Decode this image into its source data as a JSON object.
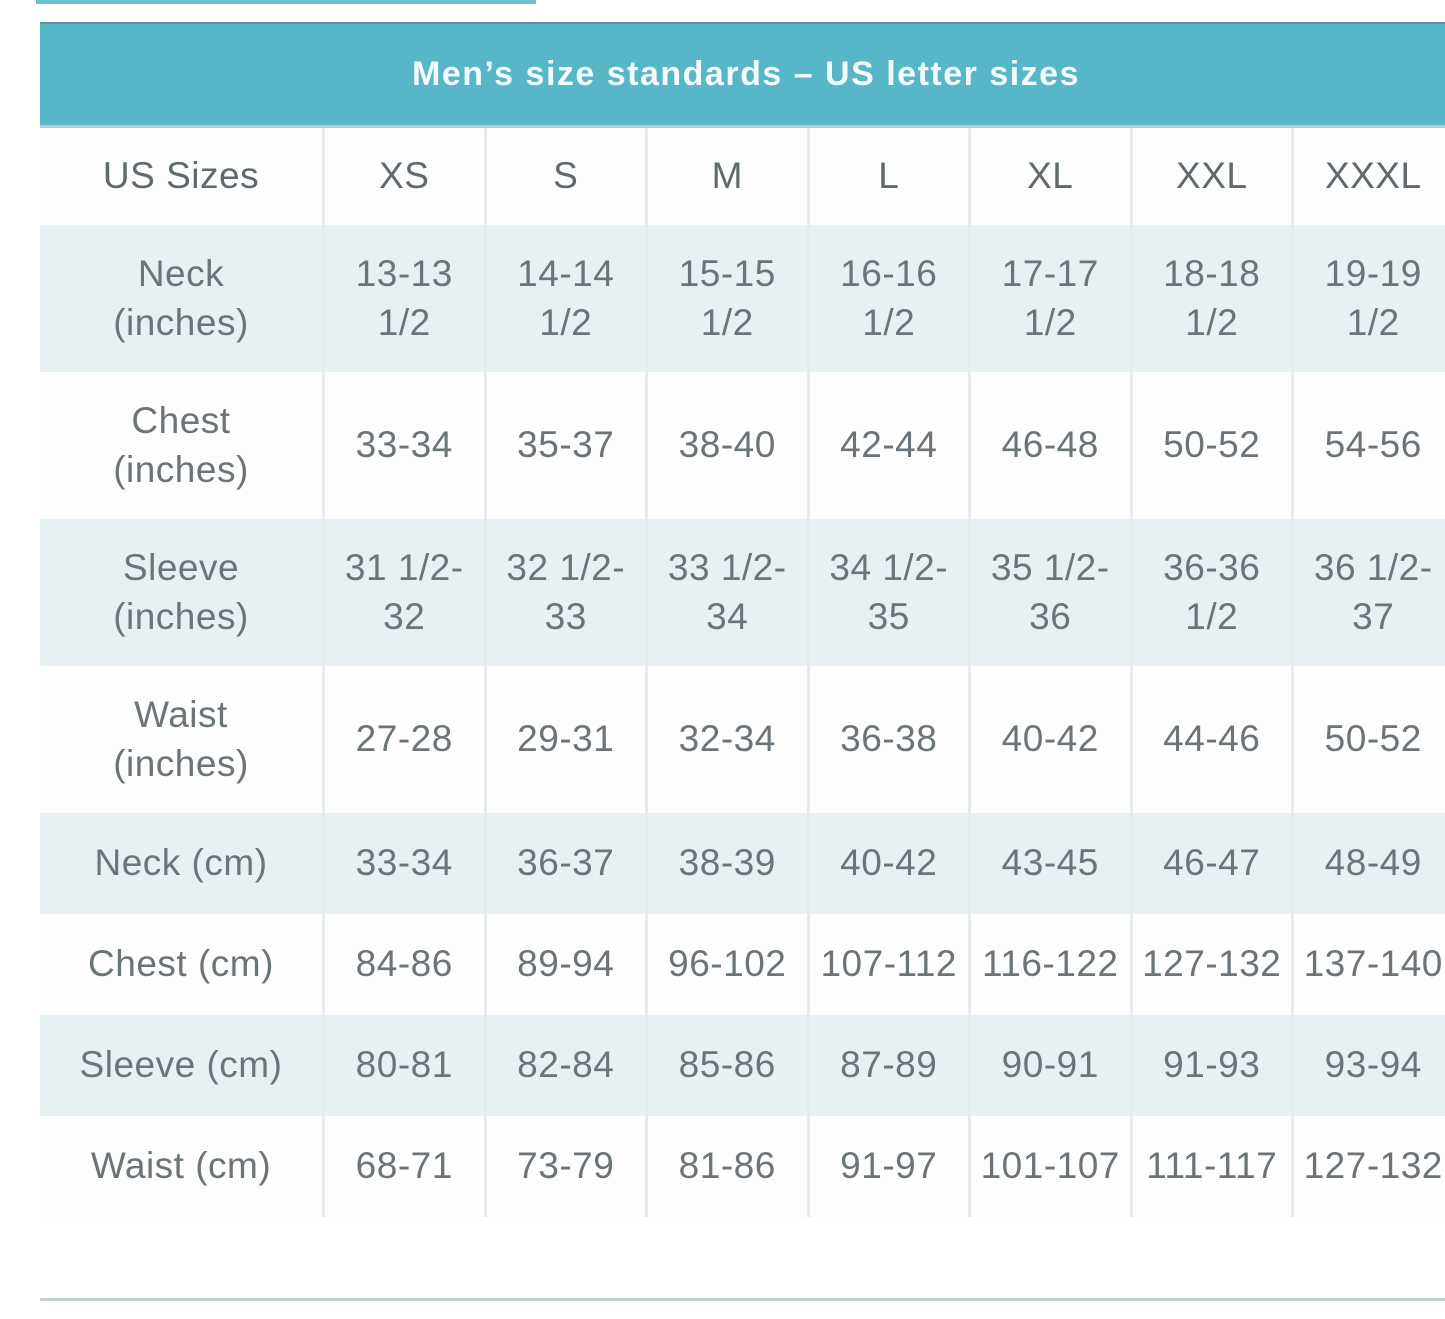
{
  "title": "Men’s size standards – US letter sizes",
  "chart_data": {
    "type": "table",
    "title": "Men’s size standards – US letter sizes",
    "columns": [
      "US Sizes",
      "XS",
      "S",
      "M",
      "L",
      "XL",
      "XXL",
      "XXXL"
    ],
    "rows": [
      {
        "label": "Neck (inches)",
        "label_display": "Neck\n(inches)",
        "values": [
          "13-13 1/2",
          "14-14 1/2",
          "15-15 1/2",
          "16-16 1/2",
          "17-17 1/2",
          "18-18 1/2",
          "19-19 1/2"
        ],
        "values_display": [
          "13-13\n1/2",
          "14-14\n1/2",
          "15-15\n1/2",
          "16-16\n1/2",
          "17-17\n1/2",
          "18-18\n1/2",
          "19-19\n1/2"
        ],
        "tall": true
      },
      {
        "label": "Chest (inches)",
        "label_display": "Chest\n(inches)",
        "values": [
          "33-34",
          "35-37",
          "38-40",
          "42-44",
          "46-48",
          "50-52",
          "54-56"
        ],
        "values_display": [
          "33-34",
          "35-37",
          "38-40",
          "42-44",
          "46-48",
          "50-52",
          "54-56"
        ],
        "tall": true
      },
      {
        "label": "Sleeve (inches)",
        "label_display": "Sleeve\n(inches)",
        "values": [
          "31 1/2-32",
          "32 1/2-33",
          "33 1/2-34",
          "34 1/2-35",
          "35 1/2-36",
          "36-36 1/2",
          "36 1/2-37"
        ],
        "values_display": [
          "31 1/2-\n32",
          "32 1/2-\n33",
          "33 1/2-\n34",
          "34 1/2-\n35",
          "35 1/2-\n36",
          "36-36\n1/2",
          "36 1/2-\n37"
        ],
        "tall": true
      },
      {
        "label": "Waist (inches)",
        "label_display": "Waist\n(inches)",
        "values": [
          "27-28",
          "29-31",
          "32-34",
          "36-38",
          "40-42",
          "44-46",
          "50-52"
        ],
        "values_display": [
          "27-28",
          "29-31",
          "32-34",
          "36-38",
          "40-42",
          "44-46",
          "50-52"
        ],
        "tall": true
      },
      {
        "label": "Neck (cm)",
        "label_display": "Neck (cm)",
        "values": [
          "33-34",
          "36-37",
          "38-39",
          "40-42",
          "43-45",
          "46-47",
          "48-49"
        ],
        "values_display": [
          "33-34",
          "36-37",
          "38-39",
          "40-42",
          "43-45",
          "46-47",
          "48-49"
        ],
        "tall": false
      },
      {
        "label": "Chest (cm)",
        "label_display": "Chest (cm)",
        "values": [
          "84-86",
          "89-94",
          "96-102",
          "107-112",
          "116-122",
          "127-132",
          "137-140"
        ],
        "values_display": [
          "84-86",
          "89-94",
          "96-102",
          "107-112",
          "116-122",
          "127-132",
          "137-140"
        ],
        "tall": false
      },
      {
        "label": "Sleeve (cm)",
        "label_display": "Sleeve (cm)",
        "values": [
          "80-81",
          "82-84",
          "85-86",
          "87-89",
          "90-91",
          "91-93",
          "93-94"
        ],
        "values_display": [
          "80-81",
          "82-84",
          "85-86",
          "87-89",
          "90-91",
          "91-93",
          "93-94"
        ],
        "tall": false
      },
      {
        "label": "Waist (cm)",
        "label_display": "Waist (cm)",
        "values": [
          "68-71",
          "73-79",
          "81-86",
          "91-97",
          "101-107",
          "111-117",
          "127-132"
        ],
        "values_display": [
          "68-71",
          "73-79",
          "81-86",
          "91-97",
          "101-107",
          "111-117",
          "127-132"
        ],
        "tall": false
      }
    ],
    "layout": {
      "header_position": "top-banner",
      "alternating_row_shading": true,
      "first_shaded_row": "Neck (inches)"
    }
  },
  "colors": {
    "banner": "#57b7c8",
    "banner_text": "#f4fbfc",
    "row_light_blue": "#e7f1f3",
    "row_white": "#fdfdfd",
    "text": "#6b7478",
    "column_separator": "#e6ebeb",
    "bottom_rule": "#c7d2cf"
  }
}
